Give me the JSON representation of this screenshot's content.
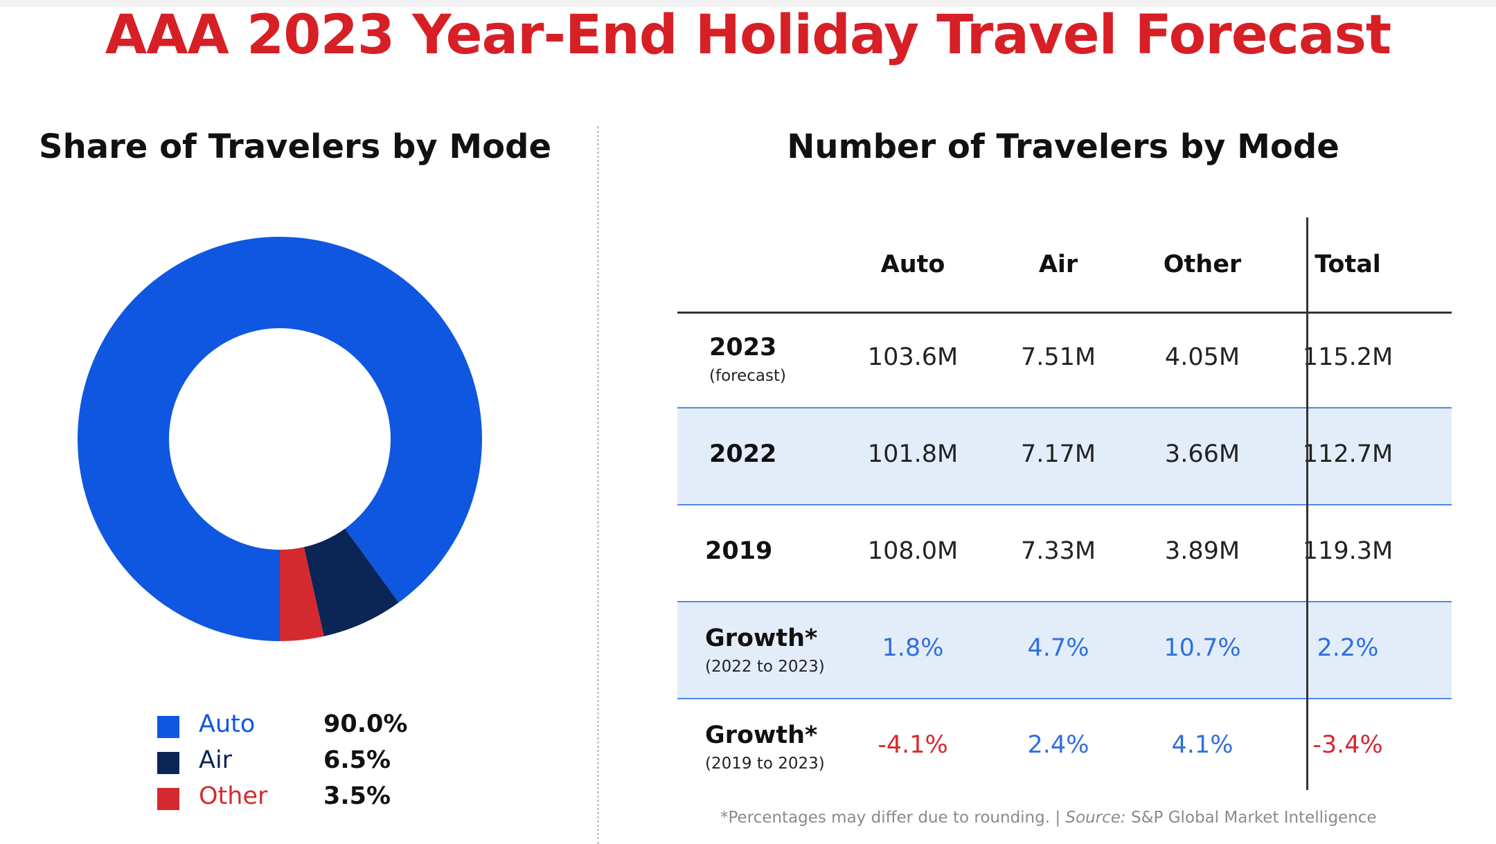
{
  "title": "AAA 2023 Year-End Holiday Travel Forecast",
  "colors": {
    "title": "#d71f26",
    "auto": "#0f57e0",
    "air": "#0c2557",
    "other": "#d42a2f",
    "positive_growth": "#2f6fe0",
    "negative_growth": "#d42a2f",
    "row_shade": "#e3edf9"
  },
  "chart_data": [
    {
      "type": "pie",
      "title": "Share of Travelers by Mode",
      "donut": true,
      "categories": [
        "Auto",
        "Air",
        "Other"
      ],
      "values": [
        90.0,
        6.5,
        3.5
      ],
      "value_labels": [
        "90.0%",
        "6.5%",
        "3.5%"
      ],
      "colors": [
        "#0f57e0",
        "#0c2557",
        "#d42a2f"
      ],
      "legend_position": "bottom"
    },
    {
      "type": "table",
      "title": "Number of Travelers by Mode",
      "columns": [
        "",
        "Auto",
        "Air",
        "Other",
        "Total"
      ],
      "rows": [
        {
          "label": "2023",
          "sublabel": "(forecast)",
          "values": [
            "103.6M",
            "7.51M",
            "4.05M",
            "115.2M"
          ],
          "shaded": false
        },
        {
          "label": "2022",
          "sublabel": "",
          "values": [
            "101.8M",
            "7.17M",
            "3.66M",
            "112.7M"
          ],
          "shaded": true
        },
        {
          "label": "2019",
          "sublabel": "",
          "values": [
            "108.0M",
            "7.33M",
            "3.89M",
            "119.3M"
          ],
          "shaded": false
        },
        {
          "label": "Growth*",
          "sublabel": "(2022 to 2023)",
          "values": [
            "1.8%",
            "4.7%",
            "10.7%",
            "2.2%"
          ],
          "shaded": true
        },
        {
          "label": "Growth*",
          "sublabel": "(2019 to 2023)",
          "values": [
            "-4.1%",
            "2.4%",
            "4.1%",
            "-3.4%"
          ],
          "shaded": false
        }
      ]
    }
  ],
  "footnote": {
    "text": "*Percentages may differ due to rounding. | ",
    "source_label": "Source:",
    "source_text": " S&P Global Market Intelligence"
  }
}
